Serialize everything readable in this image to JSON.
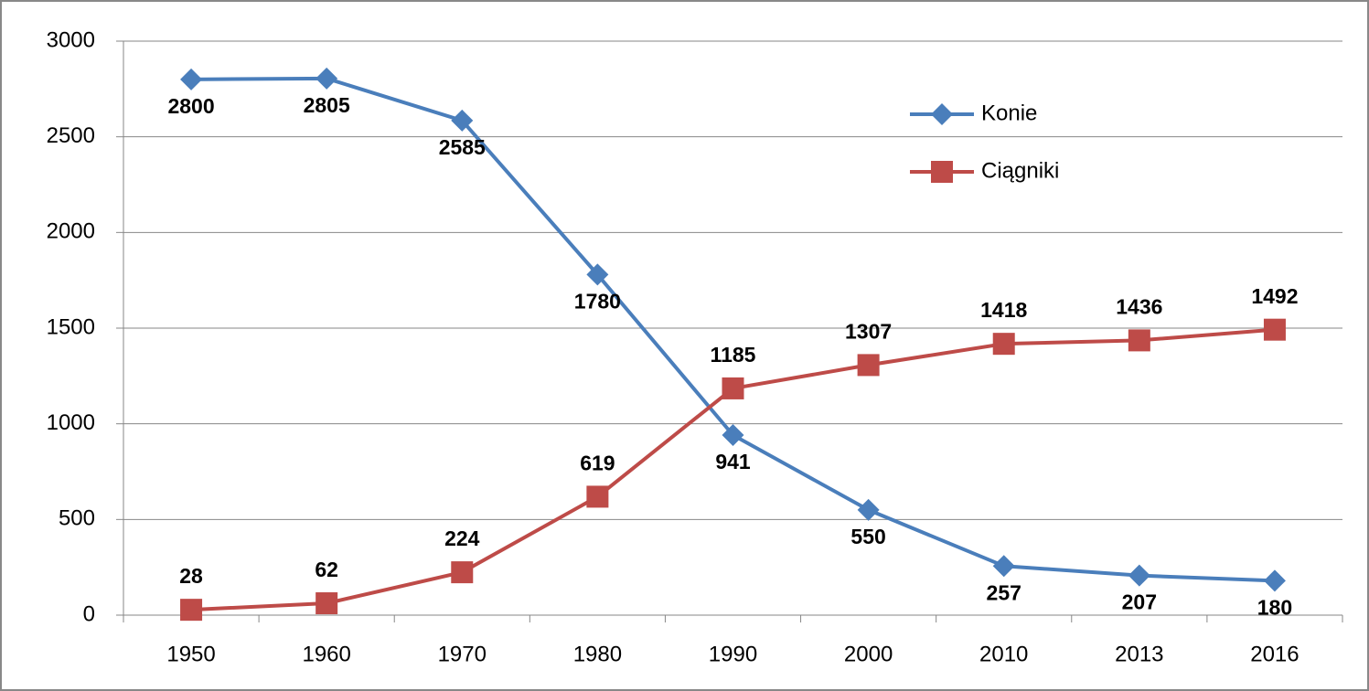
{
  "chart_data": {
    "type": "line",
    "categories": [
      "1950",
      "1960",
      "1970",
      "1980",
      "1990",
      "2000",
      "2010",
      "2013",
      "2016"
    ],
    "series": [
      {
        "name": "Konie",
        "color": "#4a7ebb",
        "marker": "diamond",
        "values": [
          2800,
          2805,
          2585,
          1780,
          941,
          550,
          257,
          207,
          180
        ]
      },
      {
        "name": "Ciągniki",
        "color": "#be4b48",
        "marker": "square",
        "values": [
          28,
          62,
          224,
          619,
          1185,
          1307,
          1418,
          1436,
          1492
        ]
      }
    ],
    "ylim": [
      0,
      3000
    ],
    "yticks": [
      0,
      500,
      1000,
      1500,
      2000,
      2500,
      3000
    ],
    "grid": true,
    "legend": "upper right"
  }
}
